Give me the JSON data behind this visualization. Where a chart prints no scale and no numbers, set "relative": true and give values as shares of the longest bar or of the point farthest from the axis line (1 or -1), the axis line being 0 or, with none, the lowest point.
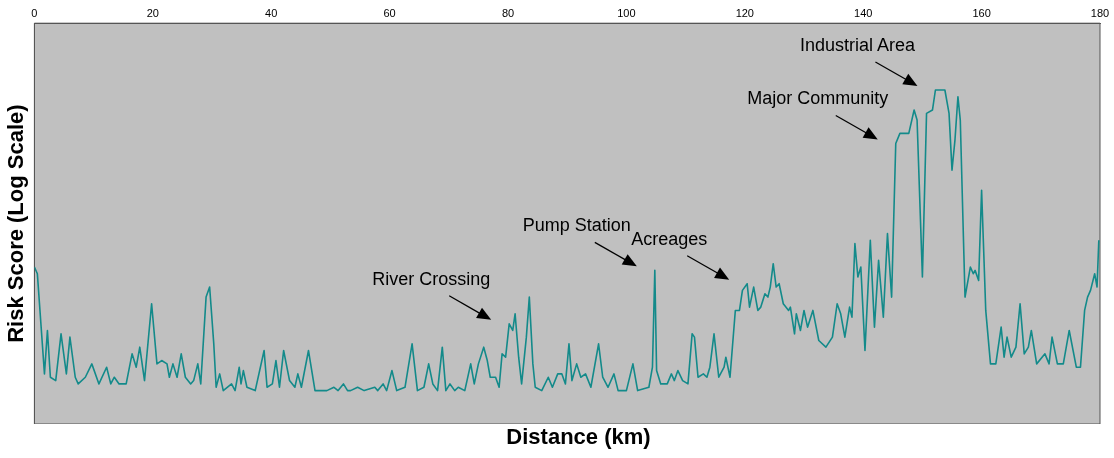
{
  "chart_data": {
    "type": "line",
    "xlabel": "Distance (km)",
    "ylabel": "Risk Score (Log Scale)",
    "relative": true,
    "xlim": [
      0,
      180
    ],
    "xticks": [
      0,
      20,
      40,
      60,
      80,
      100,
      120,
      140,
      160,
      180
    ],
    "grid": false,
    "legend": false,
    "marker": "none",
    "series": [
      {
        "color": "#138a8a",
        "x": [
          0,
          0.5,
          1.7,
          2.2,
          2.7,
          3.6,
          4.5,
          5.4,
          6.0,
          6.9,
          7.4,
          8.6,
          9.7,
          10.9,
          12.2,
          12.9,
          13.5,
          14.3,
          15.5,
          16.5,
          17.2,
          17.8,
          18.6,
          19.8,
          20.7,
          21.5,
          22.4,
          22.8,
          23.4,
          24.1,
          24.8,
          25.5,
          26.4,
          26.9,
          27.6,
          28.1,
          29.0,
          29.6,
          30.3,
          30.7,
          31.3,
          31.9,
          33.3,
          33.9,
          34.6,
          34.9,
          35.3,
          35.9,
          37.3,
          38.8,
          39.3,
          40.2,
          40.8,
          41.4,
          42.1,
          43.1,
          44.0,
          44.5,
          45.1,
          46.3,
          47.4,
          49.4,
          50.6,
          51.3,
          52.2,
          52.9,
          53.4,
          54.6,
          55.7,
          57.5,
          58.0,
          58.9,
          59.5,
          60.4,
          61.2,
          62.6,
          63.8,
          64.7,
          65.8,
          66.6,
          67.3,
          68.1,
          68.9,
          69.5,
          70.2,
          71.0,
          71.6,
          72.7,
          73.7,
          74.3,
          75.0,
          75.9,
          76.5,
          77.0,
          77.9,
          78.5,
          79.0,
          79.6,
          80.2,
          80.8,
          81.2,
          81.8,
          82.3,
          83.1,
          83.6,
          84.2,
          84.6,
          85.7,
          86.8,
          87.5,
          88.4,
          89.1,
          89.7,
          90.3,
          90.8,
          91.6,
          92.3,
          93.1,
          94.0,
          95.3,
          96.0,
          96.9,
          97.9,
          98.6,
          100.0,
          101.1,
          101.9,
          103.8,
          104.4,
          104.8,
          105.1,
          105.8,
          106.9,
          107.6,
          108.1,
          108.7,
          109.5,
          110.4,
          111.1,
          111.5,
          112.1,
          113.0,
          113.6,
          114.1,
          114.8,
          115.6,
          116.5,
          116.8,
          117.5,
          118.4,
          119.1,
          119.6,
          120.4,
          120.8,
          121.5,
          122.2,
          122.7,
          123.4,
          123.9,
          124.3,
          124.8,
          125.3,
          125.8,
          126.5,
          127.4,
          127.7,
          128.4,
          128.7,
          129.4,
          130.0,
          130.6,
          131.5,
          132.5,
          133.7,
          134.8,
          135.6,
          136.2,
          136.9,
          137.7,
          138.1,
          138.6,
          139.1,
          139.6,
          140.3,
          141.2,
          141.9,
          142.6,
          143.4,
          144.1,
          144.8,
          145.5,
          146.2,
          147.7,
          148.6,
          149.1,
          150.0,
          150.7,
          151.7,
          152.2,
          153.8,
          154.5,
          155.0,
          155.5,
          156.0,
          156.4,
          157.2,
          158.1,
          158.6,
          158.9,
          159.5,
          160.0,
          160.7,
          161.5,
          162.4,
          163.3,
          163.8,
          164.3,
          165.0,
          165.8,
          166.5,
          167.2,
          167.9,
          168.4,
          169.3,
          170.7,
          171.4,
          171.9,
          172.8,
          173.8,
          174.8,
          176.0,
          176.7,
          177.4,
          177.9,
          178.4,
          179.1,
          179.5,
          179.8
        ],
        "values": [
          0.47,
          0.45,
          0.15,
          0.28,
          0.14,
          0.13,
          0.27,
          0.15,
          0.26,
          0.14,
          0.12,
          0.14,
          0.18,
          0.12,
          0.17,
          0.12,
          0.14,
          0.12,
          0.12,
          0.21,
          0.17,
          0.23,
          0.13,
          0.36,
          0.18,
          0.19,
          0.18,
          0.14,
          0.18,
          0.14,
          0.21,
          0.14,
          0.12,
          0.13,
          0.18,
          0.12,
          0.38,
          0.41,
          0.24,
          0.11,
          0.15,
          0.1,
          0.12,
          0.1,
          0.17,
          0.12,
          0.16,
          0.11,
          0.1,
          0.22,
          0.11,
          0.12,
          0.19,
          0.11,
          0.22,
          0.13,
          0.11,
          0.15,
          0.11,
          0.22,
          0.1,
          0.1,
          0.11,
          0.1,
          0.12,
          0.1,
          0.1,
          0.11,
          0.1,
          0.11,
          0.1,
          0.12,
          0.1,
          0.16,
          0.1,
          0.11,
          0.24,
          0.1,
          0.11,
          0.18,
          0.12,
          0.1,
          0.23,
          0.1,
          0.12,
          0.1,
          0.11,
          0.1,
          0.18,
          0.12,
          0.18,
          0.23,
          0.19,
          0.14,
          0.14,
          0.11,
          0.21,
          0.2,
          0.3,
          0.28,
          0.33,
          0.2,
          0.12,
          0.26,
          0.38,
          0.18,
          0.11,
          0.1,
          0.14,
          0.11,
          0.15,
          0.15,
          0.12,
          0.24,
          0.13,
          0.18,
          0.14,
          0.15,
          0.11,
          0.24,
          0.14,
          0.11,
          0.15,
          0.1,
          0.1,
          0.18,
          0.1,
          0.11,
          0.17,
          0.46,
          0.16,
          0.12,
          0.12,
          0.15,
          0.13,
          0.16,
          0.13,
          0.12,
          0.27,
          0.26,
          0.14,
          0.15,
          0.14,
          0.17,
          0.27,
          0.14,
          0.17,
          0.2,
          0.14,
          0.34,
          0.34,
          0.4,
          0.42,
          0.35,
          0.41,
          0.34,
          0.35,
          0.39,
          0.38,
          0.41,
          0.48,
          0.41,
          0.42,
          0.36,
          0.34,
          0.35,
          0.27,
          0.33,
          0.28,
          0.34,
          0.29,
          0.34,
          0.25,
          0.23,
          0.26,
          0.36,
          0.33,
          0.26,
          0.35,
          0.32,
          0.54,
          0.44,
          0.47,
          0.22,
          0.55,
          0.29,
          0.49,
          0.32,
          0.57,
          0.38,
          0.84,
          0.87,
          0.87,
          0.94,
          0.91,
          0.44,
          0.93,
          0.94,
          1,
          1,
          0.93,
          0.76,
          0.85,
          0.98,
          0.91,
          0.38,
          0.47,
          0.45,
          0.46,
          0.43,
          0.7,
          0.34,
          0.18,
          0.18,
          0.29,
          0.2,
          0.26,
          0.2,
          0.23,
          0.36,
          0.21,
          0.23,
          0.28,
          0.18,
          0.21,
          0.18,
          0.26,
          0.18,
          0.18,
          0.28,
          0.17,
          0.17,
          0.34,
          0.38,
          0.4,
          0.45,
          0.41,
          0.55
        ]
      }
    ],
    "annotations": [
      {
        "text": "River Crossing",
        "x": 80.2,
        "y": 0.3
      },
      {
        "text": "Pump Station",
        "x": 104.8,
        "y": 0.46
      },
      {
        "text": "Acreages",
        "x": 120.4,
        "y": 0.42
      },
      {
        "text": "Major Community",
        "x": 145.5,
        "y": 0.84
      },
      {
        "text": "Industrial Area",
        "x": 152.2,
        "y": 1
      }
    ]
  }
}
